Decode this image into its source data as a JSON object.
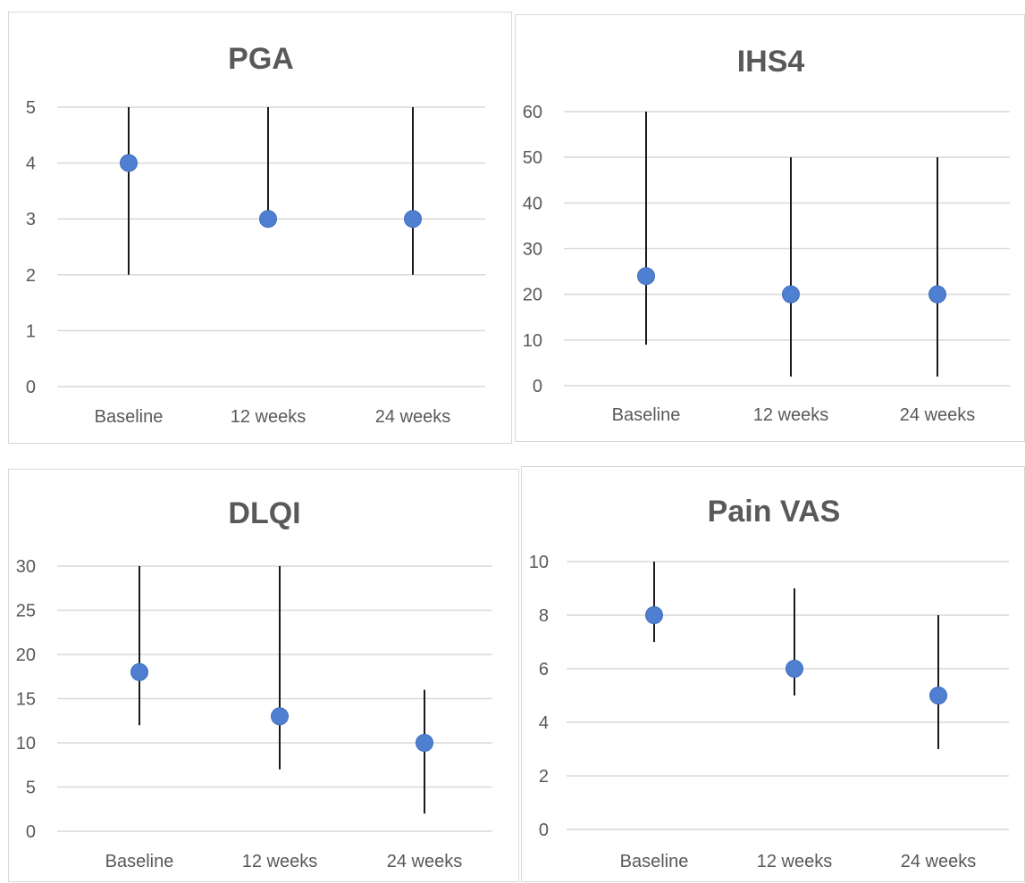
{
  "chart_data": [
    {
      "type": "scatter",
      "title": "PGA",
      "categories": [
        "Baseline",
        "12 weeks",
        "24 weeks"
      ],
      "yticks": [
        0,
        1,
        2,
        3,
        4,
        5
      ],
      "ylim": [
        0,
        5
      ],
      "series": [
        {
          "values": [
            4,
            3,
            3
          ],
          "low": [
            2,
            3,
            2
          ],
          "high": [
            5,
            5,
            5
          ]
        }
      ],
      "grid": true,
      "colors": {
        "marker": "#4f7fd1",
        "range_line": "#1a1a1a",
        "grid": "#d9d9d9",
        "text": "#595959"
      }
    },
    {
      "type": "scatter",
      "title": "IHS4",
      "categories": [
        "Baseline",
        "12 weeks",
        "24 weeks"
      ],
      "yticks": [
        0,
        10,
        20,
        30,
        40,
        50,
        60
      ],
      "ylim": [
        0,
        60
      ],
      "series": [
        {
          "values": [
            24,
            20,
            20
          ],
          "low": [
            9,
            2,
            2
          ],
          "high": [
            60,
            50,
            50
          ]
        }
      ],
      "grid": true,
      "colors": {
        "marker": "#4f7fd1",
        "range_line": "#1a1a1a",
        "grid": "#d9d9d9",
        "text": "#595959"
      }
    },
    {
      "type": "scatter",
      "title": "DLQI",
      "categories": [
        "Baseline",
        "12 weeks",
        "24 weeks"
      ],
      "yticks": [
        0,
        5,
        10,
        15,
        20,
        25,
        30
      ],
      "ylim": [
        0,
        30
      ],
      "series": [
        {
          "values": [
            18,
            13,
            10
          ],
          "low": [
            12,
            7,
            2
          ],
          "high": [
            30,
            30,
            16
          ]
        }
      ],
      "grid": true,
      "colors": {
        "marker": "#4f7fd1",
        "range_line": "#1a1a1a",
        "grid": "#d9d9d9",
        "text": "#595959"
      }
    },
    {
      "type": "scatter",
      "title": "Pain VAS",
      "categories": [
        "Baseline",
        "12 weeks",
        "24 weeks"
      ],
      "yticks": [
        0,
        2,
        4,
        6,
        8,
        10
      ],
      "ylim": [
        0,
        10
      ],
      "series": [
        {
          "values": [
            8,
            6,
            5
          ],
          "low": [
            7,
            5,
            3
          ],
          "high": [
            10,
            9,
            8
          ]
        }
      ],
      "grid": true,
      "colors": {
        "marker": "#4f7fd1",
        "range_line": "#1a1a1a",
        "grid": "#d9d9d9",
        "text": "#595959"
      }
    }
  ]
}
